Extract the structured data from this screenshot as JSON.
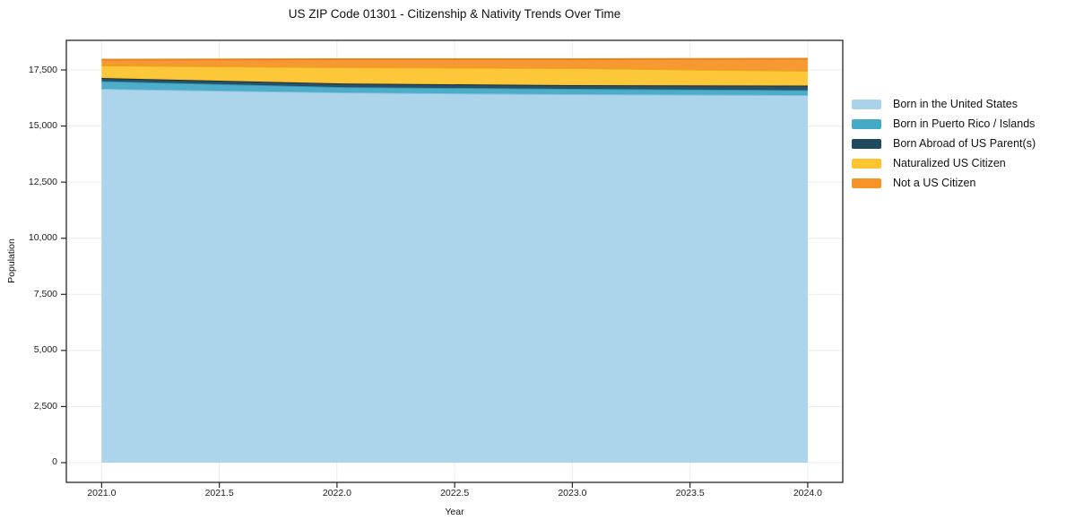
{
  "title": "US ZIP Code 01301 - Citizenship & Nativity Trends Over Time",
  "chart_data": {
    "type": "area",
    "stacked": true,
    "title": "US ZIP Code 01301 - Citizenship & Nativity Trends Over Time",
    "xlabel": "Year",
    "ylabel": "Population",
    "x": [
      2021,
      2022,
      2023,
      2024
    ],
    "series": [
      {
        "name": "Born in the United States",
        "color": "#A8D3EA",
        "line_color": "#7EBCDB",
        "values": [
          16660,
          16500,
          16420,
          16380
        ]
      },
      {
        "name": "Born in Puerto Rico / Islands",
        "color": "#45AAC6",
        "line_color": "#2D94B3",
        "values": [
          340,
          240,
          240,
          220
        ]
      },
      {
        "name": "Born Abroad of US Parent(s)",
        "color": "#20495D",
        "line_color": "#132E3C",
        "values": [
          140,
          160,
          160,
          200
        ]
      },
      {
        "name": "Naturalized US Citizen",
        "color": "#FDC42F",
        "line_color": "#E6A817",
        "values": [
          560,
          720,
          760,
          660
        ]
      },
      {
        "name": "Not a US Citizen",
        "color": "#F79428",
        "line_color": "#E87C12",
        "values": [
          260,
          360,
          400,
          540
        ]
      }
    ],
    "x_ticks": [
      "2021.0",
      "2021.5",
      "2022.0",
      "2022.5",
      "2023.0",
      "2023.5",
      "2024.0"
    ],
    "x_tick_values": [
      2021,
      2021.5,
      2022,
      2022.5,
      2023,
      2023.5,
      2024
    ],
    "y_ticks": [
      "0",
      "2,500",
      "5,000",
      "7,500",
      "10,000",
      "12,500",
      "15,000",
      "17,500"
    ],
    "y_tick_values": [
      0,
      2500,
      5000,
      7500,
      10000,
      12500,
      15000,
      17500
    ],
    "axes": {
      "xlim": [
        2020.85,
        2024.149
      ],
      "ylim": [
        -880,
        18820
      ]
    },
    "grid": true,
    "grid_color": "#EBEBEB",
    "spine_color": "#262626",
    "legend_position": "right"
  },
  "legend": {
    "items": [
      "Born in the United States",
      "Born in Puerto Rico / Islands",
      "Born Abroad of US Parent(s)",
      "Naturalized US Citizen",
      "Not a US Citizen"
    ]
  }
}
